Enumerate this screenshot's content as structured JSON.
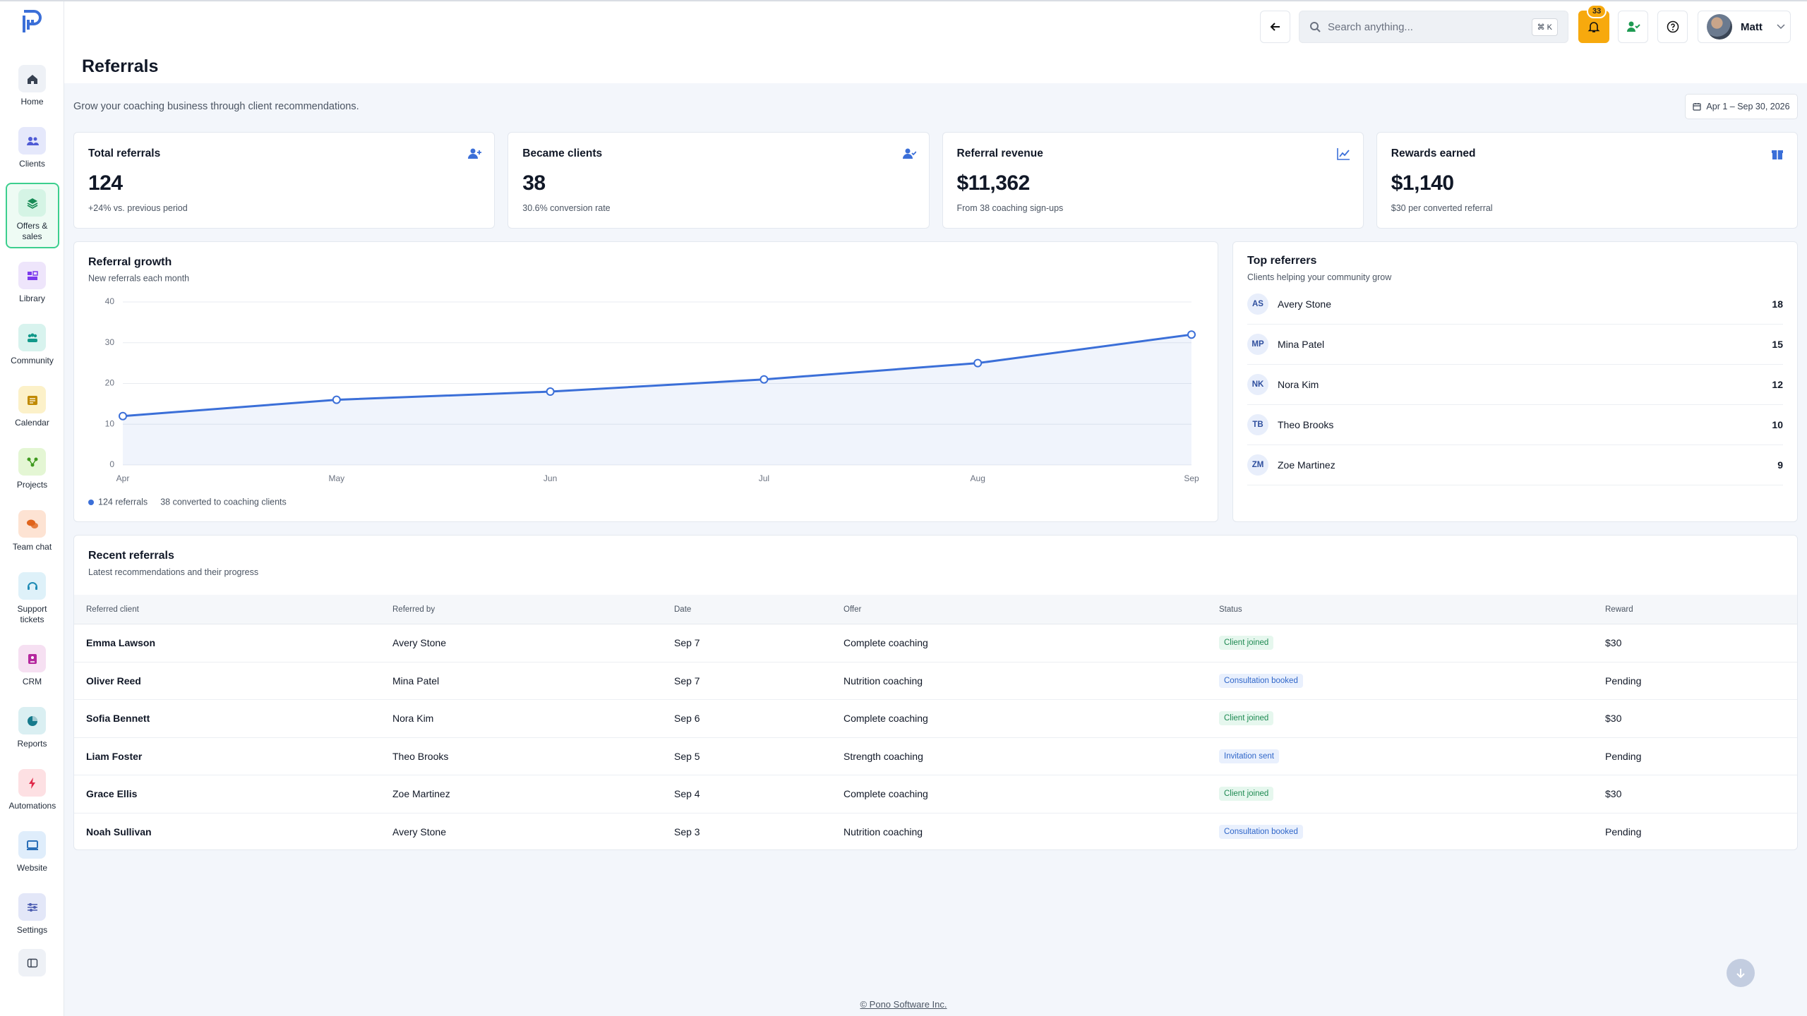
{
  "sidebar": {
    "items": [
      {
        "label": "Home",
        "color": "#374151",
        "bg": "#eef1f6"
      },
      {
        "label": "Clients",
        "color": "#4f5bd5",
        "bg": "#e5e8fb"
      },
      {
        "label": "Offers & sales",
        "color": "#178a55",
        "bg": "#d5f4e5",
        "active": true
      },
      {
        "label": "Library",
        "color": "#7c3aed",
        "bg": "#eee5fb"
      },
      {
        "label": "Community",
        "color": "#12998a",
        "bg": "#d8f3ee"
      },
      {
        "label": "Calendar",
        "color": "#c08a00",
        "bg": "#fcf1c9"
      },
      {
        "label": "Projects",
        "color": "#3f9a1f",
        "bg": "#e4f6d4"
      },
      {
        "label": "Team chat",
        "color": "#e0641c",
        "bg": "#fde3d3"
      },
      {
        "label": "Support tickets",
        "color": "#1f8bb5",
        "bg": "#def1f9"
      },
      {
        "label": "CRM",
        "color": "#b5289e",
        "bg": "#f6e0f2"
      },
      {
        "label": "Reports",
        "color": "#167a8c",
        "bg": "#daeff2"
      },
      {
        "label": "Automations",
        "color": "#e0294a",
        "bg": "#fde0e3"
      },
      {
        "label": "Website",
        "color": "#2a6fb8",
        "bg": "#dfedfb"
      },
      {
        "label": "Settings",
        "color": "#4a5bb0",
        "bg": "#e3e7f8"
      }
    ]
  },
  "header": {
    "title": "Referrals",
    "search_placeholder": "Search anything...",
    "shortcut": "⌘ K",
    "notification_count": 33,
    "user": "Matt"
  },
  "subtitle": "Grow your coaching business through client recommendations.",
  "date_range": "Apr 1 – Sep 30, 2026",
  "stats": [
    {
      "label": "Total referrals",
      "value": "124",
      "note": "+24% vs. previous period"
    },
    {
      "label": "Became clients",
      "value": "38",
      "note": "30.6% conversion rate"
    },
    {
      "label": "Referral revenue",
      "value": "$11,362",
      "note": "From 38 coaching sign-ups"
    },
    {
      "label": "Rewards earned",
      "value": "$1,140",
      "note": "$30 per converted referral"
    }
  ],
  "chart_data": {
    "type": "line",
    "title": "Referral growth",
    "subtitle": "New referrals each month",
    "categories": [
      "Apr",
      "May",
      "Jun",
      "Jul",
      "Aug",
      "Sep"
    ],
    "series": [
      {
        "name": "124 referrals",
        "color": "#3b6fd8",
        "values": [
          12,
          16,
          18,
          21,
          25,
          32
        ]
      }
    ],
    "caption": "38 converted to coaching clients",
    "ylim": [
      0,
      40
    ],
    "yticks": [
      0,
      10,
      20,
      30,
      40
    ],
    "grid": true
  },
  "top_referrers": {
    "title": "Top referrers",
    "subtitle": "Clients helping your community grow",
    "rows": [
      {
        "initials": "AS",
        "name": "Avery Stone",
        "count": 18
      },
      {
        "initials": "MP",
        "name": "Mina Patel",
        "count": 15
      },
      {
        "initials": "NK",
        "name": "Nora Kim",
        "count": 12
      },
      {
        "initials": "TB",
        "name": "Theo Brooks",
        "count": 10
      },
      {
        "initials": "ZM",
        "name": "Zoe Martinez",
        "count": 9
      }
    ]
  },
  "recent_referrals": {
    "title": "Recent referrals",
    "subtitle": "Latest recommendations and their progress",
    "columns": [
      "Referred client",
      "Referred by",
      "Date",
      "Offer",
      "Status",
      "Reward"
    ],
    "rows": [
      {
        "client": "Emma Lawson",
        "referred_by": "Avery Stone",
        "date": "Sep 7",
        "offer": "Complete coaching",
        "status": {
          "label": "Client joined",
          "tone": "success"
        },
        "reward": "$30"
      },
      {
        "client": "Oliver Reed",
        "referred_by": "Mina Patel",
        "date": "Sep 7",
        "offer": "Nutrition coaching",
        "status": {
          "label": "Consultation booked",
          "tone": "info"
        },
        "reward": "Pending"
      },
      {
        "client": "Sofia Bennett",
        "referred_by": "Nora Kim",
        "date": "Sep 6",
        "offer": "Complete coaching",
        "status": {
          "label": "Client joined",
          "tone": "success"
        },
        "reward": "$30"
      },
      {
        "client": "Liam Foster",
        "referred_by": "Theo Brooks",
        "date": "Sep 5",
        "offer": "Strength coaching",
        "status": {
          "label": "Invitation sent",
          "tone": "info"
        },
        "reward": "Pending"
      },
      {
        "client": "Grace Ellis",
        "referred_by": "Zoe Martinez",
        "date": "Sep 4",
        "offer": "Complete coaching",
        "status": {
          "label": "Client joined",
          "tone": "success"
        },
        "reward": "$30"
      },
      {
        "client": "Noah Sullivan",
        "referred_by": "Avery Stone",
        "date": "Sep 3",
        "offer": "Nutrition coaching",
        "status": {
          "label": "Consultation booked",
          "tone": "info"
        },
        "reward": "Pending"
      }
    ]
  },
  "footer": "© Pono Software Inc."
}
